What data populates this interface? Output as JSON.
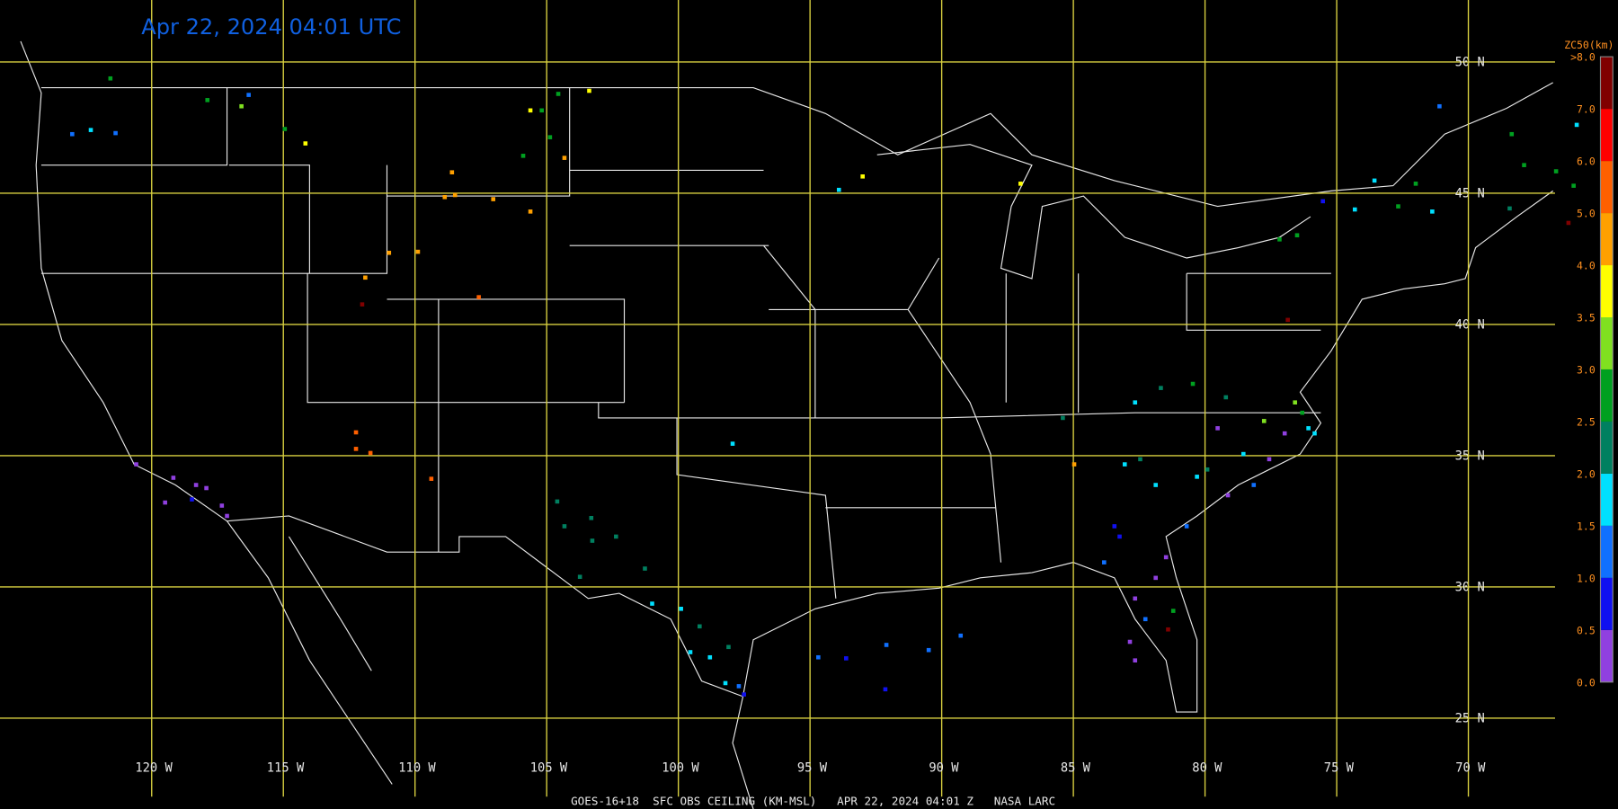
{
  "header": {
    "title": "Apr 22, 2024 04:01 UTC"
  },
  "footer": {
    "caption": "GOES-16+18  SFC OBS CEILING (KM-MSL)   APR 22, 2024 04:01 Z   NASA LARC"
  },
  "grid": {
    "lat_labels": [
      "50 N",
      "45 N",
      "40 N",
      "35 N",
      "30 N",
      "25 N"
    ],
    "lon_labels": [
      "120 W",
      "115 W",
      "110 W",
      "105 W",
      "100 W",
      "95 W",
      "90 W",
      "85 W",
      "80 W",
      "75 W",
      "70 W"
    ]
  },
  "legend": {
    "title": "ZC50(km)",
    "labels": [
      ">8.0",
      "7.0",
      "6.0",
      "5.0",
      "4.0",
      "3.5",
      "3.0",
      "2.5",
      "2.0",
      "1.5",
      "1.0",
      "0.5",
      "0.0"
    ]
  }
}
